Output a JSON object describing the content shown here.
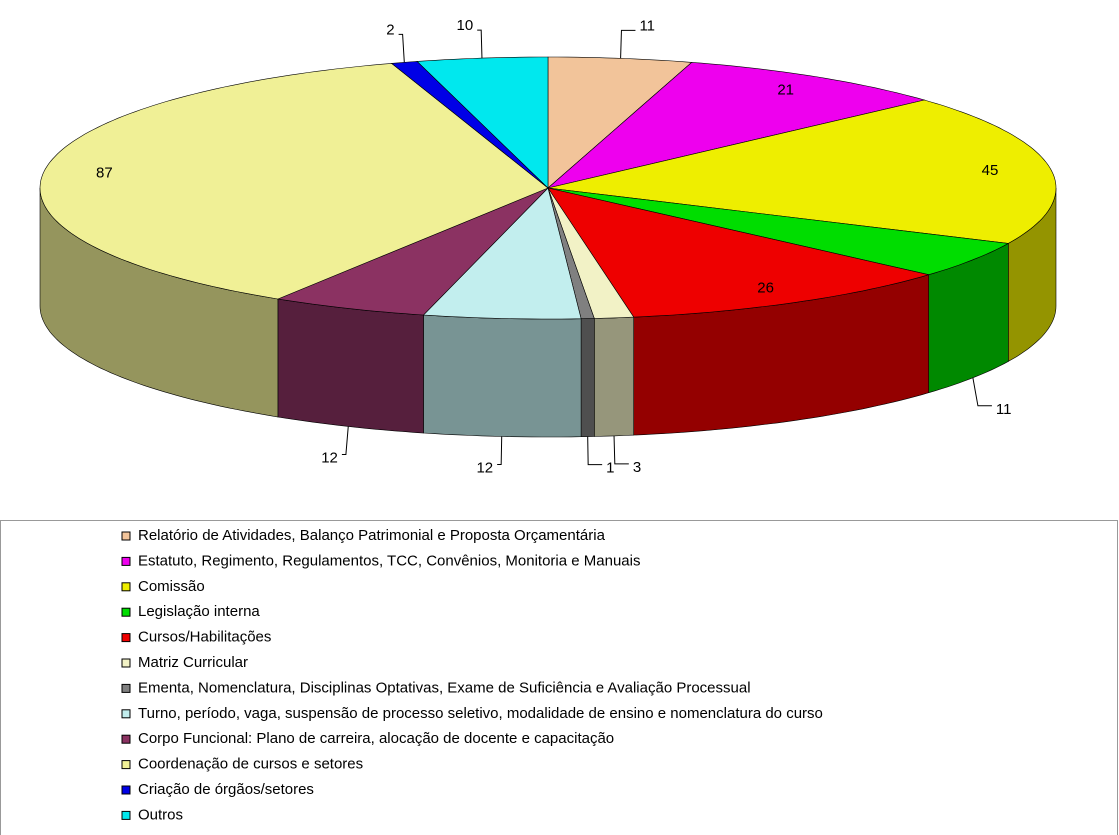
{
  "chart_data": {
    "type": "pie",
    "categories": [
      "Relatório de Atividades, Balanço Patrimonial e Proposta Orçamentária",
      "Estatuto, Regimento, Regulamentos, TCC, Convênios,  Monitoria e Manuais",
      "Comissão",
      "Legislação interna",
      "Cursos/Habilitações",
      "Matriz Curricular",
      "Ementa, Nomenclatura, Disciplinas Optativas, Exame de Suficiência e Avaliação Processual",
      "Turno, período, vaga, suspensão de processo seletivo,  modalidade de ensino e nomenclatura do curso",
      "Corpo Funcional: Plano de carreira, alocação de docente e capacitação",
      "Coordenação de cursos e setores",
      "Criação de órgãos/setores",
      "Outros"
    ],
    "values": [
      11,
      21,
      45,
      11,
      26,
      3,
      1,
      12,
      12,
      87,
      2,
      10
    ],
    "colors": [
      "#f2c49a",
      "#ee00ee",
      "#eeee00",
      "#00dd00",
      "#ee0000",
      "#f2f2c6",
      "#808080",
      "#c2eeee",
      "#8b3262",
      "#f0f096",
      "#0000e6",
      "#00e8ee"
    ],
    "legend": "bottom"
  }
}
